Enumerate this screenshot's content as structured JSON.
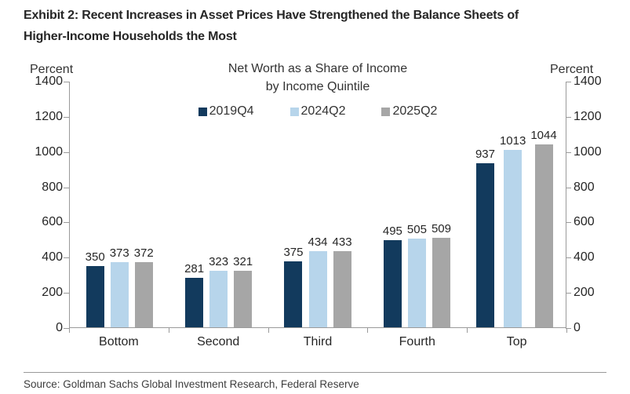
{
  "header": {
    "title_line1": "Exhibit 2: Recent Increases in Asset Prices Have Strengthened the Balance Sheets of",
    "title_line2": "Higher-Income Households the Most"
  },
  "chart": {
    "title_line1": "Net Worth as a Share of Income",
    "title_line2": "by Income Quintile",
    "y_axis_label": "Percent"
  },
  "chart_data": {
    "type": "bar",
    "title": "Net Worth as a Share of Income by Income Quintile",
    "categories": [
      "Bottom",
      "Second",
      "Third",
      "Fourth",
      "Top"
    ],
    "series": [
      {
        "name": "2019Q4",
        "color": "#123a5d",
        "values": [
          350,
          281,
          375,
          495,
          937
        ]
      },
      {
        "name": "2024Q2",
        "color": "#b7d5eb",
        "values": [
          373,
          323,
          434,
          505,
          1013
        ]
      },
      {
        "name": "2025Q2",
        "color": "#a6a6a6",
        "values": [
          372,
          321,
          433,
          509,
          1044
        ]
      }
    ],
    "xlabel": "",
    "ylabel": "Percent",
    "ylim": [
      0,
      1400
    ],
    "ytick_step": 200,
    "grid": false,
    "legend_position": "top-center",
    "value_labels": true,
    "axis_color": "#9a9a9a"
  },
  "footer": {
    "source": "Source: Goldman Sachs Global Investment Research, Federal Reserve"
  }
}
